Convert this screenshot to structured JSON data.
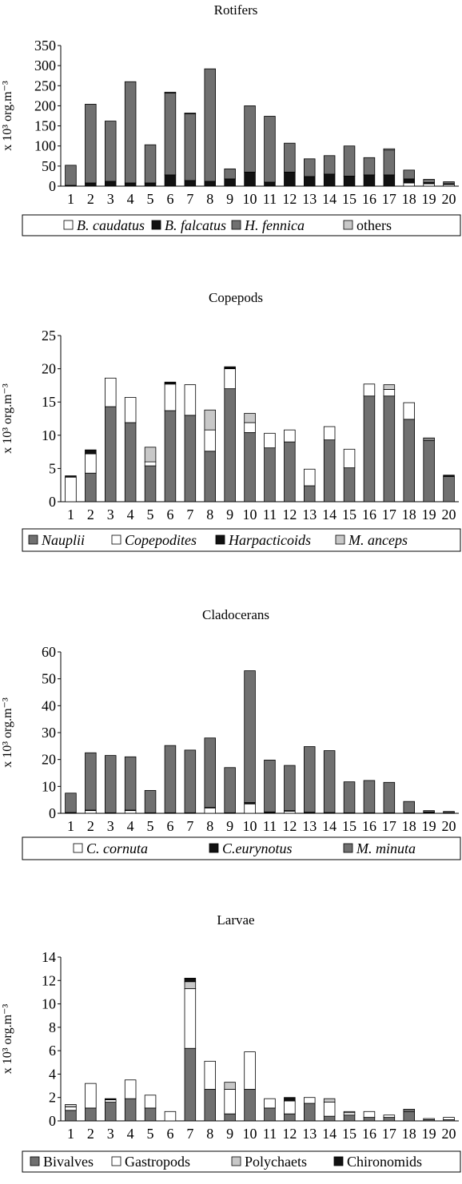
{
  "colors": {
    "dark": "#707070",
    "black": "#111111",
    "white": "#ffffff",
    "light": "#c8c8c8",
    "axis": "#000000"
  },
  "chart_data": [
    {
      "type": "bar",
      "stacked": true,
      "title": "Rotifers",
      "ylabel": "x 10³ org.m⁻³",
      "ylim": [
        0,
        350
      ],
      "yticks": [
        0,
        50,
        100,
        150,
        200,
        250,
        300,
        350
      ],
      "categories": [
        "1",
        "2",
        "3",
        "4",
        "5",
        "6",
        "7",
        "8",
        "9",
        "10",
        "11",
        "12",
        "13",
        "14",
        "15",
        "16",
        "17",
        "18",
        "19",
        "20"
      ],
      "series": [
        {
          "name": "B. caudatus",
          "italic": true,
          "color": "#ffffff",
          "values": [
            0,
            0,
            0,
            0,
            0,
            0,
            0,
            0,
            0,
            0,
            0,
            0,
            0,
            0,
            0,
            0,
            0,
            8,
            6,
            4
          ]
        },
        {
          "name": "B. falcatus",
          "italic": true,
          "color": "#111111",
          "values": [
            2,
            8,
            12,
            8,
            8,
            28,
            14,
            12,
            18,
            35,
            10,
            35,
            24,
            30,
            25,
            28,
            28,
            10,
            3,
            2
          ]
        },
        {
          "name": "H. fennica",
          "italic": true,
          "color": "#707070",
          "values": [
            50,
            196,
            150,
            252,
            95,
            204,
            166,
            280,
            25,
            165,
            164,
            72,
            44,
            46,
            75,
            43,
            62,
            22,
            8,
            5
          ]
        },
        {
          "name": "others",
          "italic": false,
          "color": "#c8c8c8",
          "values": [
            0,
            0,
            0,
            0,
            0,
            2,
            2,
            0,
            0,
            0,
            0,
            0,
            0,
            0,
            0,
            0,
            3,
            0,
            0,
            0
          ]
        }
      ]
    },
    {
      "type": "bar",
      "stacked": true,
      "title": "Copepods",
      "ylabel": "x 10³ org.m⁻³",
      "ylim": [
        0,
        25
      ],
      "yticks": [
        0,
        5,
        10,
        15,
        20,
        25
      ],
      "categories": [
        "1",
        "2",
        "3",
        "4",
        "5",
        "6",
        "7",
        "8",
        "9",
        "10",
        "11",
        "12",
        "13",
        "14",
        "15",
        "16",
        "17",
        "18",
        "19",
        "20"
      ],
      "series": [
        {
          "name": "Nauplii",
          "italic": true,
          "color": "#707070",
          "values": [
            0,
            4.3,
            14.3,
            11.9,
            5.4,
            13.7,
            13.0,
            7.6,
            17.0,
            10.4,
            8.1,
            9.0,
            2.4,
            9.3,
            5.1,
            15.9,
            15.9,
            12.4,
            9.2,
            3.8
          ]
        },
        {
          "name": "Copepodites",
          "italic": true,
          "color": "#ffffff",
          "values": [
            3.7,
            2.9,
            4.3,
            3.8,
            0.6,
            4.0,
            4.6,
            3.2,
            3.0,
            1.5,
            2.2,
            1.8,
            2.5,
            2.0,
            2.8,
            1.8,
            1.0,
            2.5,
            0.2,
            0
          ]
        },
        {
          "name": "Harpacticoids",
          "italic": true,
          "color": "#111111",
          "values": [
            0.2,
            0.6,
            0,
            0,
            0,
            0.3,
            0,
            0,
            0.3,
            0,
            0,
            0,
            0,
            0,
            0,
            0,
            0,
            0,
            0,
            0.2
          ]
        },
        {
          "name": "M. anceps",
          "italic": true,
          "color": "#c8c8c8",
          "values": [
            0,
            0,
            0,
            0,
            2.2,
            0,
            0,
            3.0,
            0,
            1.4,
            0,
            0,
            0,
            0,
            0,
            0,
            0.7,
            0,
            0.2,
            0
          ]
        }
      ]
    },
    {
      "type": "bar",
      "stacked": true,
      "title": "Cladocerans",
      "ylabel": "x 10³ org.m⁻³",
      "ylim": [
        0,
        60
      ],
      "yticks": [
        0,
        10,
        20,
        30,
        40,
        50,
        60
      ],
      "categories": [
        "1",
        "2",
        "3",
        "4",
        "5",
        "6",
        "7",
        "8",
        "9",
        "10",
        "11",
        "12",
        "13",
        "14",
        "15",
        "16",
        "17",
        "18",
        "19",
        "20"
      ],
      "series": [
        {
          "name": "C. cornuta",
          "italic": true,
          "color": "#ffffff",
          "values": [
            0,
            1.0,
            0,
            1.0,
            0,
            0,
            0,
            2.0,
            0,
            3.5,
            0,
            0.8,
            0,
            0,
            0,
            0,
            0,
            0,
            0,
            0
          ]
        },
        {
          "name": "C.eurynotus",
          "italic": true,
          "color": "#111111",
          "values": [
            0.3,
            0.2,
            0.2,
            0.2,
            0.2,
            0.2,
            0.2,
            0.2,
            0.2,
            0.5,
            0.5,
            0.2,
            0.4,
            0.3,
            0.2,
            0.2,
            0.2,
            0.2,
            0.5,
            0.2
          ]
        },
        {
          "name": "M. minuta",
          "italic": true,
          "color": "#707070",
          "values": [
            7.2,
            21.3,
            21.3,
            19.8,
            8.3,
            25.0,
            23.3,
            25.8,
            16.8,
            49.0,
            19.3,
            16.8,
            24.4,
            23.0,
            11.5,
            12.0,
            11.3,
            4.2,
            0.5,
            0.5
          ]
        }
      ]
    },
    {
      "type": "bar",
      "stacked": true,
      "title": "Larvae",
      "ylabel": "x 10³ org.m⁻³",
      "ylim": [
        0,
        14
      ],
      "yticks": [
        0,
        2,
        4,
        6,
        8,
        10,
        12,
        14
      ],
      "categories": [
        "1",
        "2",
        "3",
        "4",
        "5",
        "6",
        "7",
        "8",
        "9",
        "10",
        "11",
        "12",
        "13",
        "14",
        "15",
        "16",
        "17",
        "18",
        "19",
        "20"
      ],
      "series": [
        {
          "name": "Bivalves",
          "italic": false,
          "color": "#707070",
          "values": [
            0.9,
            1.1,
            1.6,
            1.9,
            1.1,
            0,
            6.2,
            2.7,
            0.6,
            2.7,
            1.1,
            0.6,
            1.5,
            0.4,
            0.5,
            0.3,
            0.3,
            0.8,
            0.1,
            0.1
          ]
        },
        {
          "name": "Gastropods",
          "italic": false,
          "color": "#ffffff",
          "values": [
            0.3,
            2.1,
            0.2,
            1.6,
            1.1,
            0.8,
            5.1,
            2.4,
            2.1,
            3.2,
            0.8,
            1.1,
            0.5,
            1.2,
            0.2,
            0.5,
            0.2,
            0.1,
            0.1,
            0.2
          ]
        },
        {
          "name": "Polychaets",
          "italic": false,
          "color": "#c8c8c8",
          "values": [
            0.2,
            0,
            0,
            0,
            0,
            0,
            0.6,
            0,
            0.6,
            0,
            0,
            0,
            0,
            0.3,
            0.1,
            0,
            0,
            0.1,
            0,
            0
          ]
        },
        {
          "name": "Chironomids",
          "italic": false,
          "color": "#111111",
          "values": [
            0,
            0,
            0.1,
            0,
            0,
            0,
            0.3,
            0,
            0,
            0,
            0,
            0.3,
            0,
            0,
            0,
            0,
            0,
            0,
            0,
            0
          ]
        }
      ]
    }
  ]
}
